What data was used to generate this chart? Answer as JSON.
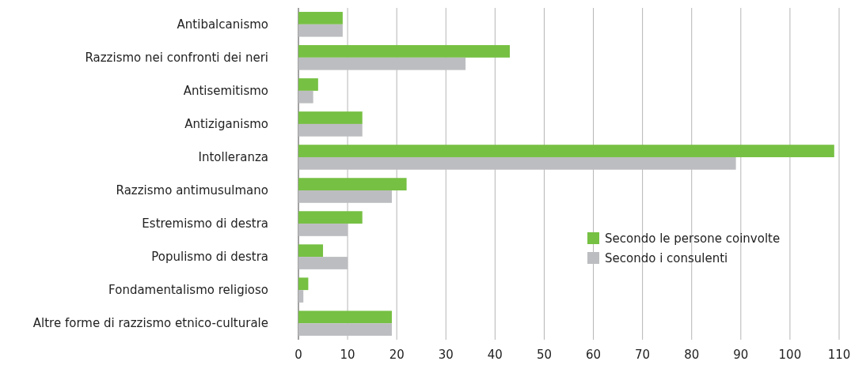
{
  "chart_data": {
    "type": "bar",
    "orientation": "horizontal",
    "categories": [
      "Antibalcanismo",
      "Razzismo nei confronti dei neri",
      "Antisemitismo",
      "Antiziganismo",
      "Intolleranza",
      "Razzismo antimusulmano",
      "Estremismo di destra",
      "Populismo di destra",
      "Fondamentalismo religioso",
      "Altre forme di razzismo etnico-culturale"
    ],
    "series": [
      {
        "name": "Secondo le persone coinvolte",
        "color": "#76c043",
        "values": [
          9,
          43,
          4,
          13,
          109,
          22,
          13,
          5,
          2,
          19
        ]
      },
      {
        "name": "Secondo i consulenti",
        "color": "#bcbdc0",
        "values": [
          9,
          34,
          3,
          13,
          89,
          19,
          10,
          10,
          1,
          19
        ]
      }
    ],
    "xlim": [
      0,
      110
    ],
    "xticks": [
      0,
      10,
      20,
      30,
      40,
      50,
      60,
      70,
      80,
      90,
      100,
      110
    ],
    "grid": "x",
    "legend": "right"
  }
}
